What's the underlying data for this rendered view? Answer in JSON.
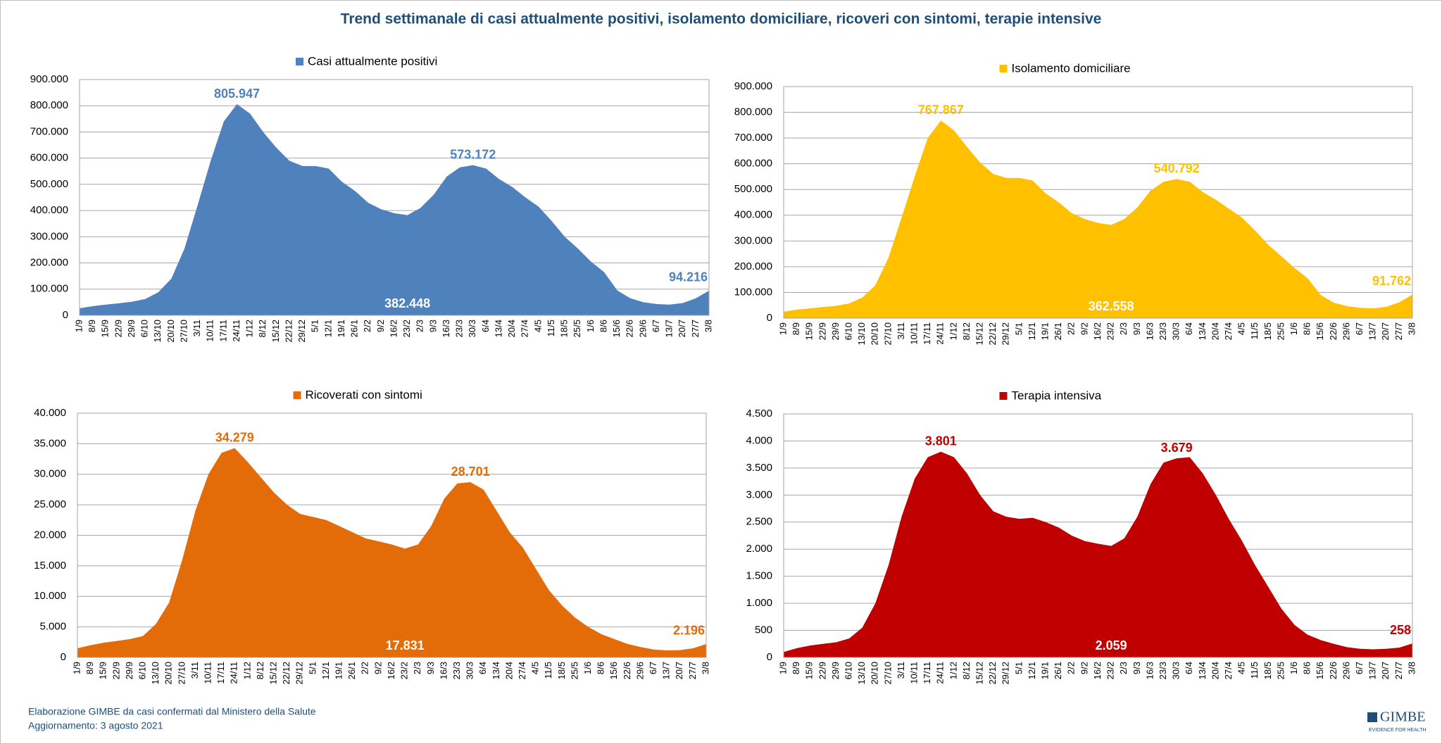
{
  "title": "Trend settimanale di casi attualmente positivi, isolamento domiciliare, ricoveri con sintomi, terapie intensive",
  "footer": {
    "source": "Elaborazione GIMBE da casi confermati dal Ministero della Salute",
    "updated": "Aggiornamento: 3 agosto 2021"
  },
  "logo": {
    "name": "GIMBE",
    "tagline": "EVIDENCE FOR HEALTH"
  },
  "chart_data": [
    {
      "type": "area",
      "grid": true,
      "categories": [
        "1/9",
        "8/9",
        "15/9",
        "22/9",
        "29/9",
        "6/10",
        "13/10",
        "20/10",
        "27/10",
        "3/11",
        "10/11",
        "17/11",
        "24/11",
        "1/12",
        "8/12",
        "15/12",
        "22/12",
        "29/12",
        "5/1",
        "12/1",
        "19/1",
        "26/1",
        "2/2",
        "9/2",
        "16/2",
        "23/2",
        "2/3",
        "9/3",
        "16/3",
        "23/3",
        "30/3",
        "6/4",
        "13/4",
        "20/4",
        "27/4",
        "4/5",
        "11/5",
        "18/5",
        "25/5",
        "1/6",
        "8/6",
        "15/6",
        "22/6",
        "29/6",
        "6/7",
        "13/7",
        "20/7",
        "27/7",
        "3/8"
      ],
      "ylim": [
        0,
        900000
      ],
      "yticks": [
        0,
        {
          "value": 100000,
          "label": "100.000"
        },
        {
          "value": 200000,
          "label": "200.000"
        },
        {
          "value": 300000,
          "label": "300.000"
        },
        {
          "value": 400000,
          "label": "400.000"
        },
        {
          "value": 500000,
          "label": "500.000"
        },
        {
          "value": 600000,
          "label": "600.000"
        },
        {
          "value": 700000,
          "label": "700.000"
        },
        {
          "value": 800000,
          "label": "800.000"
        },
        {
          "value": 900000,
          "label": "900.000"
        }
      ],
      "series": [
        {
          "name": "Casi attualmente positivi",
          "color": "#4f81bd",
          "values": [
            27000,
            35000,
            41000,
            46000,
            52000,
            62000,
            88000,
            140000,
            255000,
            420000,
            590000,
            740000,
            805947,
            770000,
            700000,
            640000,
            590000,
            570000,
            570000,
            560000,
            510000,
            475000,
            430000,
            405000,
            390000,
            382448,
            410000,
            460000,
            530000,
            565000,
            573172,
            560000,
            520000,
            490000,
            450000,
            415000,
            360000,
            300000,
            255000,
            205000,
            165000,
            95000,
            65000,
            50000,
            43000,
            41000,
            47000,
            65000,
            94216
          ],
          "value_labels": [
            null,
            null,
            null,
            null,
            null,
            null,
            null,
            null,
            null,
            null,
            null,
            null,
            "805.947",
            null,
            null,
            null,
            null,
            null,
            null,
            null,
            null,
            null,
            null,
            null,
            null,
            "382.448",
            null,
            null,
            null,
            null,
            "573.172",
            null,
            null,
            null,
            null,
            null,
            null,
            null,
            null,
            null,
            null,
            null,
            null,
            null,
            null,
            null,
            null,
            null,
            "94.216"
          ]
        }
      ]
    },
    {
      "type": "area",
      "grid": true,
      "categories": [
        "1/9",
        "8/9",
        "15/9",
        "22/9",
        "29/9",
        "6/10",
        "13/10",
        "20/10",
        "27/10",
        "3/11",
        "10/11",
        "17/11",
        "24/11",
        "1/12",
        "8/12",
        "15/12",
        "22/12",
        "29/12",
        "5/1",
        "12/1",
        "19/1",
        "26/1",
        "2/2",
        "9/2",
        "16/2",
        "23/2",
        "2/3",
        "9/3",
        "16/3",
        "23/3",
        "30/3",
        "6/4",
        "13/4",
        "20/4",
        "27/4",
        "4/5",
        "11/5",
        "18/5",
        "25/5",
        "1/6",
        "8/6",
        "15/6",
        "22/6",
        "29/6",
        "6/7",
        "13/7",
        "20/7",
        "27/7",
        "3/8"
      ],
      "ylim": [
        0,
        900000
      ],
      "yticks": [
        0,
        {
          "value": 100000,
          "label": "100.000"
        },
        {
          "value": 200000,
          "label": "200.000"
        },
        {
          "value": 300000,
          "label": "300.000"
        },
        {
          "value": 400000,
          "label": "400.000"
        },
        {
          "value": 500000,
          "label": "500.000"
        },
        {
          "value": 600000,
          "label": "600.000"
        },
        {
          "value": 700000,
          "label": "700.000"
        },
        {
          "value": 800000,
          "label": "800.000"
        },
        {
          "value": 900000,
          "label": "900.000"
        }
      ],
      "series": [
        {
          "name": "Isolamento domiciliare",
          "color": "#ffc000",
          "values": [
            25000,
            33000,
            38000,
            43000,
            48000,
            57000,
            80000,
            128000,
            235000,
            390000,
            550000,
            700000,
            767867,
            730000,
            665000,
            605000,
            560000,
            545000,
            545000,
            535000,
            485000,
            450000,
            408000,
            385000,
            370000,
            362558,
            385000,
            430000,
            495000,
            530000,
            540792,
            530000,
            490000,
            460000,
            425000,
            390000,
            340000,
            285000,
            240000,
            195000,
            155000,
            90000,
            60000,
            47000,
            40000,
            38000,
            44000,
            62000,
            91762
          ],
          "value_labels": [
            null,
            null,
            null,
            null,
            null,
            null,
            null,
            null,
            null,
            null,
            null,
            null,
            "767.867",
            null,
            null,
            null,
            null,
            null,
            null,
            null,
            null,
            null,
            null,
            null,
            null,
            "362.558",
            null,
            null,
            null,
            null,
            "540.792",
            null,
            null,
            null,
            null,
            null,
            null,
            null,
            null,
            null,
            null,
            null,
            null,
            null,
            null,
            null,
            null,
            null,
            "91.762"
          ]
        }
      ]
    },
    {
      "type": "area",
      "grid": true,
      "categories": [
        "1/9",
        "8/9",
        "15/9",
        "22/9",
        "29/9",
        "6/10",
        "13/10",
        "20/10",
        "27/10",
        "3/11",
        "10/11",
        "17/11",
        "24/11",
        "1/12",
        "8/12",
        "15/12",
        "22/12",
        "29/12",
        "5/1",
        "12/1",
        "19/1",
        "26/1",
        "2/2",
        "9/2",
        "16/2",
        "23/2",
        "2/3",
        "9/3",
        "16/3",
        "23/3",
        "30/3",
        "6/4",
        "13/4",
        "20/4",
        "27/4",
        "4/5",
        "11/5",
        "18/5",
        "25/5",
        "1/6",
        "8/6",
        "15/6",
        "22/6",
        "29/6",
        "6/7",
        "13/7",
        "20/7",
        "27/7",
        "3/8"
      ],
      "ylim": [
        0,
        40000
      ],
      "yticks": [
        0,
        {
          "value": 5000,
          "label": "5.000"
        },
        {
          "value": 10000,
          "label": "10.000"
        },
        {
          "value": 15000,
          "label": "15.000"
        },
        {
          "value": 20000,
          "label": "20.000"
        },
        {
          "value": 25000,
          "label": "25.000"
        },
        {
          "value": 30000,
          "label": "30.000"
        },
        {
          "value": 35000,
          "label": "35.000"
        },
        {
          "value": 40000,
          "label": "40.000"
        }
      ],
      "series": [
        {
          "name": "Ricoverati con sintomi",
          "color": "#e36c09",
          "values": [
            1500,
            2000,
            2400,
            2700,
            3000,
            3500,
            5500,
            9000,
            16000,
            24000,
            30000,
            33500,
            34279,
            32000,
            29500,
            27000,
            25000,
            23500,
            23000,
            22500,
            21500,
            20500,
            19500,
            19000,
            18500,
            17831,
            18500,
            21500,
            26000,
            28500,
            28701,
            27500,
            24000,
            20500,
            18000,
            14500,
            11000,
            8500,
            6500,
            5000,
            3800,
            3000,
            2200,
            1700,
            1300,
            1150,
            1200,
            1500,
            2196
          ],
          "value_labels": [
            null,
            null,
            null,
            null,
            null,
            null,
            null,
            null,
            null,
            null,
            null,
            null,
            "34.279",
            null,
            null,
            null,
            null,
            null,
            null,
            null,
            null,
            null,
            null,
            null,
            null,
            "17.831",
            null,
            null,
            null,
            null,
            "28.701",
            null,
            null,
            null,
            null,
            null,
            null,
            null,
            null,
            null,
            null,
            null,
            null,
            null,
            null,
            null,
            null,
            null,
            "2.196"
          ]
        }
      ]
    },
    {
      "type": "area",
      "grid": true,
      "categories": [
        "1/9",
        "8/9",
        "15/9",
        "22/9",
        "29/9",
        "6/10",
        "13/10",
        "20/10",
        "27/10",
        "3/11",
        "10/11",
        "17/11",
        "24/11",
        "1/12",
        "8/12",
        "15/12",
        "22/12",
        "29/12",
        "5/1",
        "12/1",
        "19/1",
        "26/1",
        "2/2",
        "9/2",
        "16/2",
        "23/2",
        "2/3",
        "9/3",
        "16/3",
        "23/3",
        "30/3",
        "6/4",
        "13/4",
        "20/4",
        "27/4",
        "4/5",
        "11/5",
        "18/5",
        "25/5",
        "1/6",
        "8/6",
        "15/6",
        "22/6",
        "29/6",
        "6/7",
        "13/7",
        "20/7",
        "27/7",
        "3/8"
      ],
      "ylim": [
        0,
        4500
      ],
      "yticks": [
        0,
        500,
        {
          "value": 1000,
          "label": "1.000"
        },
        {
          "value": 1500,
          "label": "1.500"
        },
        {
          "value": 2000,
          "label": "2.000"
        },
        {
          "value": 2500,
          "label": "2.500"
        },
        {
          "value": 3000,
          "label": "3.000"
        },
        {
          "value": 3500,
          "label": "3.500"
        },
        {
          "value": 4000,
          "label": "4.000"
        },
        {
          "value": 4500,
          "label": "4.500"
        }
      ],
      "series": [
        {
          "name": "Terapia intensiva",
          "color": "#c00000",
          "values": [
            100,
            170,
            220,
            250,
            280,
            350,
            550,
            1000,
            1700,
            2600,
            3300,
            3700,
            3801,
            3700,
            3400,
            3000,
            2700,
            2600,
            2560,
            2580,
            2500,
            2400,
            2250,
            2150,
            2100,
            2059,
            2200,
            2600,
            3200,
            3600,
            3679,
            3700,
            3400,
            3000,
            2550,
            2150,
            1700,
            1300,
            900,
            600,
            420,
            320,
            250,
            190,
            160,
            150,
            160,
            180,
            258
          ],
          "value_labels": [
            null,
            null,
            null,
            null,
            null,
            null,
            null,
            null,
            null,
            null,
            null,
            null,
            "3.801",
            null,
            null,
            null,
            null,
            null,
            null,
            null,
            null,
            null,
            null,
            null,
            null,
            "2.059",
            null,
            null,
            null,
            null,
            "3.679",
            null,
            null,
            null,
            null,
            null,
            null,
            null,
            null,
            null,
            null,
            null,
            null,
            null,
            null,
            null,
            null,
            null,
            "258"
          ]
        }
      ]
    }
  ]
}
